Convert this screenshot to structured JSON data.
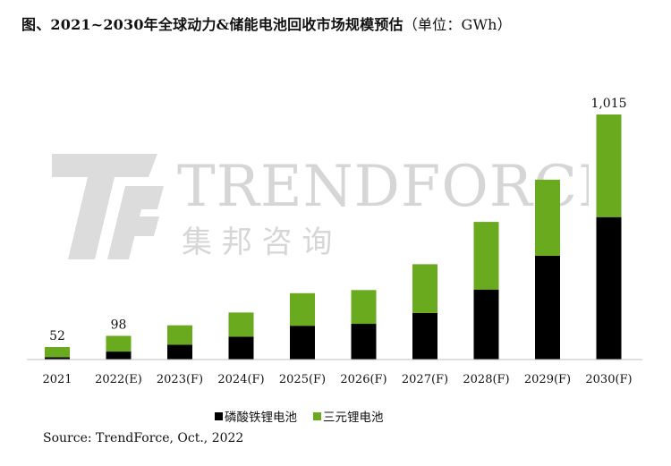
{
  "title": {
    "main": "图、2021~2030年全球动力&储能电池回收市场规模预估",
    "unit": "（单位：GWh）"
  },
  "watermark": {
    "brand": "TRENDFORCE",
    "brand_cn": "集 邦 咨 询"
  },
  "source": "Source: TrendForce, Oct., 2022",
  "colors": {
    "lfp": "#000000",
    "ternary": "#6aaa1e",
    "watermark": "#d9d9d9"
  },
  "chart_data": {
    "type": "bar",
    "stacked": true,
    "categories": [
      "2021",
      "2022(E)",
      "2023(F)",
      "2024(F)",
      "2025(F)",
      "2026(F)",
      "2027(F)",
      "2028(F)",
      "2029(F)",
      "2030(F)"
    ],
    "series": [
      {
        "name": "磷酸铁锂电池",
        "color": "#000000",
        "values": [
          10,
          33,
          62,
          95,
          140,
          148,
          193,
          290,
          430,
          590
        ]
      },
      {
        "name": "三元锂电池",
        "color": "#6aaa1e",
        "values": [
          42,
          65,
          80,
          100,
          135,
          140,
          202,
          280,
          315,
          425
        ]
      }
    ],
    "totals_labels": [
      {
        "index": 0,
        "text": "52"
      },
      {
        "index": 1,
        "text": "98"
      },
      {
        "index": 9,
        "text": "1,015"
      }
    ],
    "ylim": [
      0,
      1015
    ],
    "grid": false,
    "legend_position": "bottom"
  }
}
